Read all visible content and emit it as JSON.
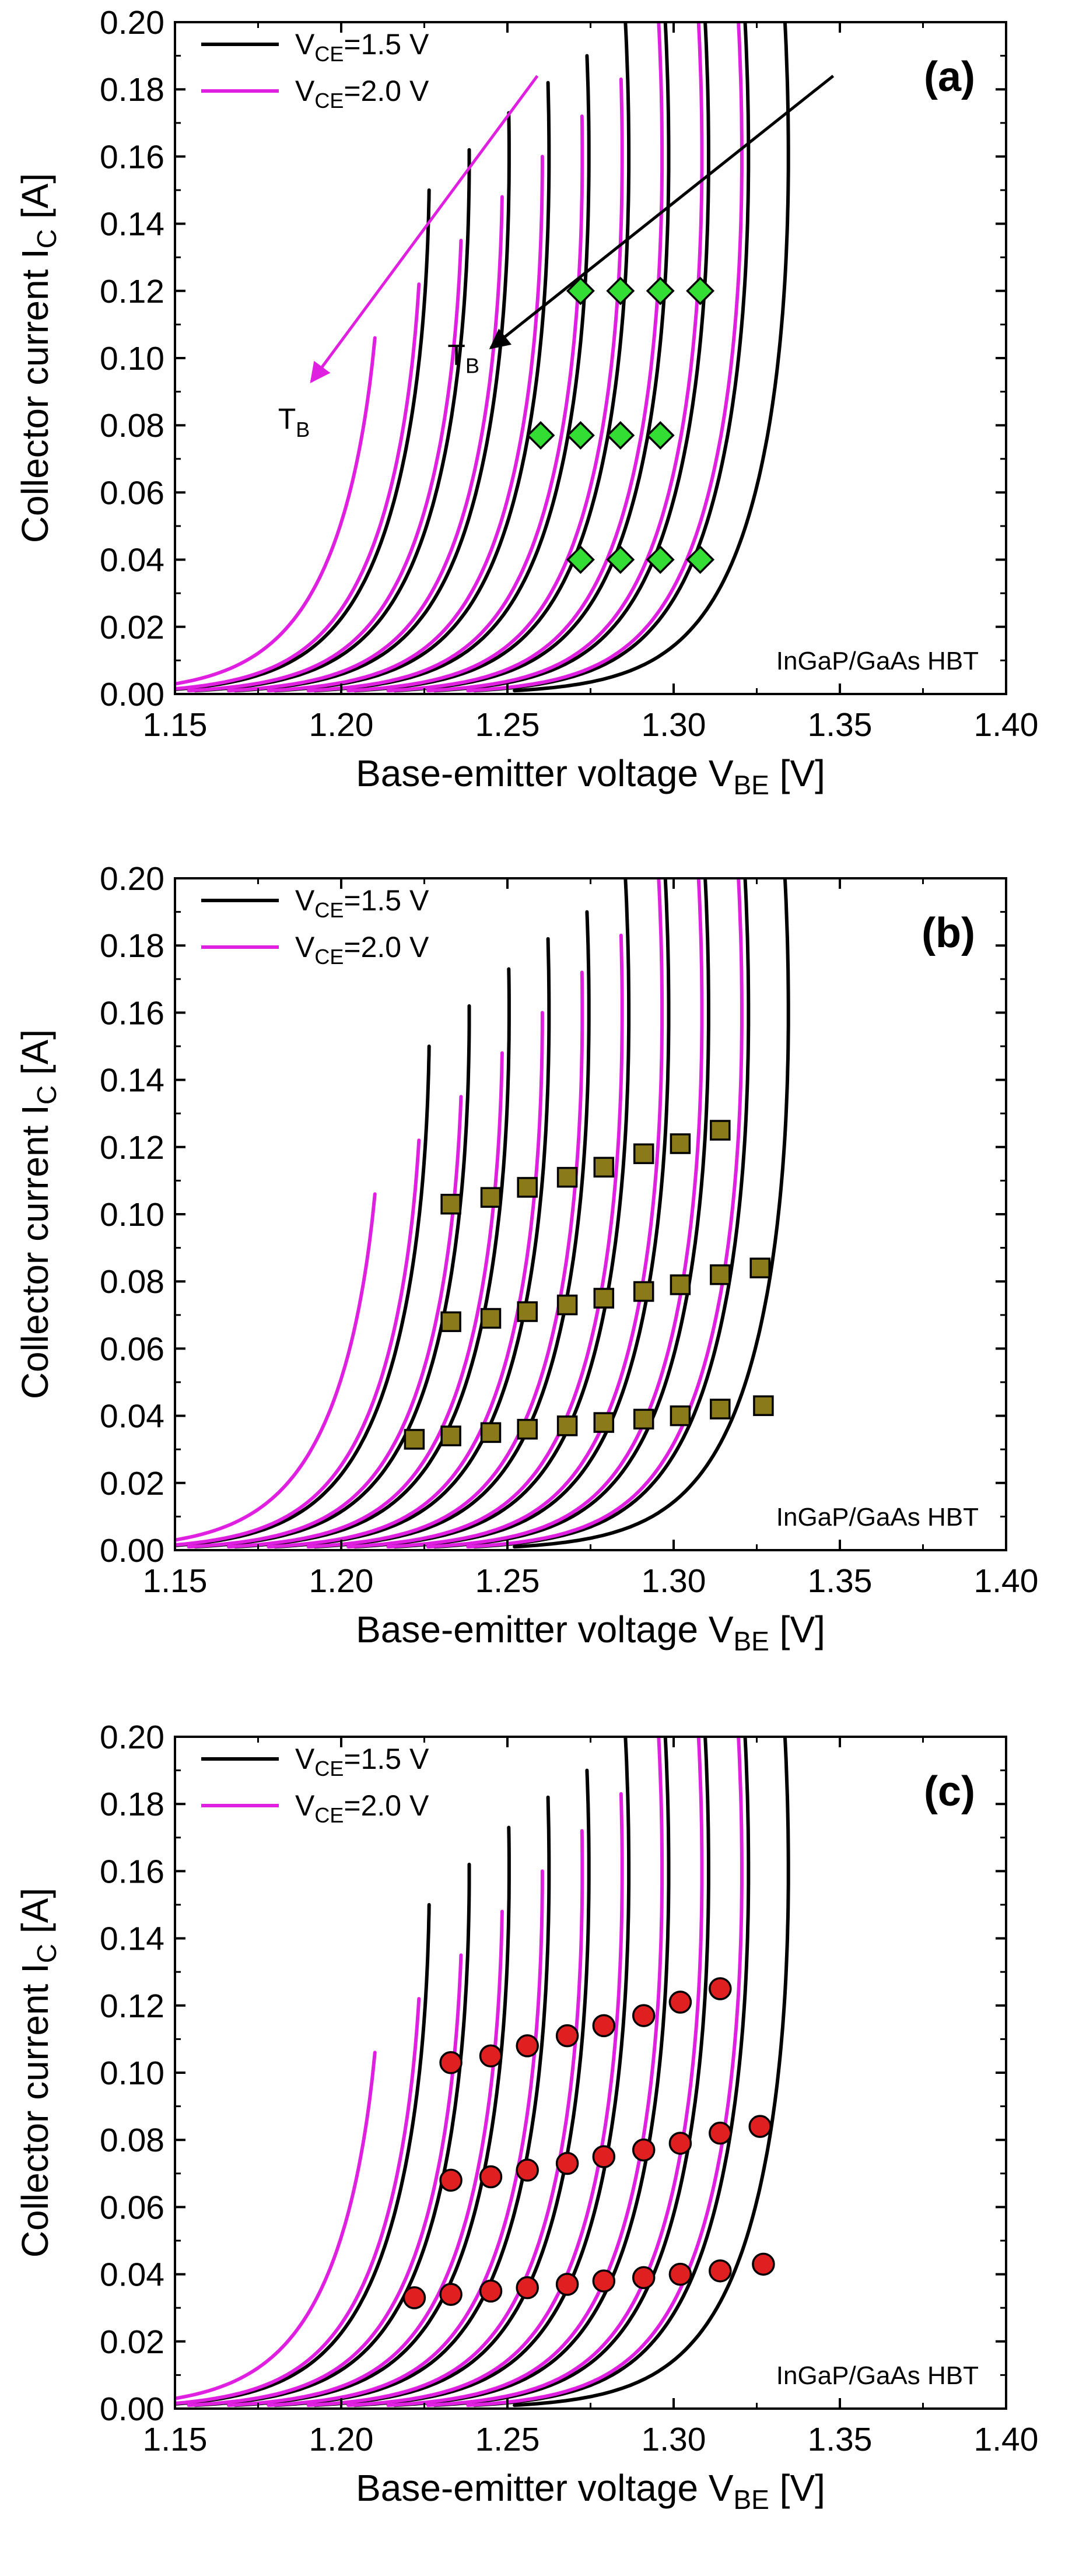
{
  "chart_data": [
    {
      "type": "line",
      "panel_label": "(a)",
      "marker": "diamond",
      "marker_color": "#33dd33",
      "xlabel_main": "Base-emitter voltage V",
      "xlabel_sub": "BE",
      "xlabel_tail": " [V]",
      "ylabel_main": "Collector current I",
      "ylabel_sub": "C",
      "ylabel_tail": " [A]",
      "xlim": [
        1.15,
        1.4
      ],
      "ylim": [
        0,
        0.2
      ],
      "xticks": [
        "1.15",
        "1.20",
        "1.25",
        "1.30",
        "1.35",
        "1.40"
      ],
      "yticks": [
        "0.00",
        "0.02",
        "0.04",
        "0.06",
        "0.08",
        "0.10",
        "0.12",
        "0.14",
        "0.16",
        "0.18",
        "0.20"
      ],
      "legend": [
        {
          "prefix": "V",
          "sub": "CE",
          "suffix": "=1.5 V",
          "color": "#000000"
        },
        {
          "prefix": "V",
          "sub": "CE",
          "suffix": "=2.0 V",
          "color": "#e020e0"
        }
      ],
      "legend_position": "top-left",
      "annotation": "InGaP/GaAs HBT",
      "arrow_label_main": "T",
      "arrow_label_sub": "B",
      "show_arrows": true,
      "series": [
        {
          "name": "VCE=1.5 V",
          "color": "#000000",
          "v0": [
            1.223,
            1.235,
            1.247,
            1.259,
            1.271,
            1.283,
            1.295,
            1.307,
            1.319,
            1.331
          ],
          "i_top": [
            0.15,
            0.162,
            0.173,
            0.182,
            0.19,
            0.2,
            0.2,
            0.2,
            0.2,
            0.2
          ]
        },
        {
          "name": "VCE=2.0 V",
          "color": "#e020e0",
          "v0": [
            1.209,
            1.221,
            1.233,
            1.245,
            1.257,
            1.269,
            1.281,
            1.293,
            1.305,
            1.317
          ],
          "i_top": [
            0.106,
            0.122,
            0.135,
            0.148,
            0.16,
            0.172,
            0.183,
            0.2,
            0.2,
            0.2
          ]
        }
      ],
      "points": [
        {
          "x": 1.272,
          "y": 0.12
        },
        {
          "x": 1.284,
          "y": 0.12
        },
        {
          "x": 1.296,
          "y": 0.12
        },
        {
          "x": 1.308,
          "y": 0.12
        },
        {
          "x": 1.26,
          "y": 0.077
        },
        {
          "x": 1.272,
          "y": 0.077
        },
        {
          "x": 1.284,
          "y": 0.077
        },
        {
          "x": 1.296,
          "y": 0.077
        },
        {
          "x": 1.272,
          "y": 0.04
        },
        {
          "x": 1.284,
          "y": 0.04
        },
        {
          "x": 1.296,
          "y": 0.04
        },
        {
          "x": 1.308,
          "y": 0.04
        }
      ]
    },
    {
      "type": "line",
      "panel_label": "(b)",
      "marker": "square",
      "marker_color": "#8a7a1a",
      "xlabel_main": "Base-emitter voltage V",
      "xlabel_sub": "BE",
      "xlabel_tail": " [V]",
      "ylabel_main": "Collector current I",
      "ylabel_sub": "C",
      "ylabel_tail": " [A]",
      "xlim": [
        1.15,
        1.4
      ],
      "ylim": [
        0,
        0.2
      ],
      "xticks": [
        "1.15",
        "1.20",
        "1.25",
        "1.30",
        "1.35",
        "1.40"
      ],
      "yticks": [
        "0.00",
        "0.02",
        "0.04",
        "0.06",
        "0.08",
        "0.10",
        "0.12",
        "0.14",
        "0.16",
        "0.18",
        "0.20"
      ],
      "legend": [
        {
          "prefix": "V",
          "sub": "CE",
          "suffix": "=1.5 V",
          "color": "#000000"
        },
        {
          "prefix": "V",
          "sub": "CE",
          "suffix": "=2.0 V",
          "color": "#e020e0"
        }
      ],
      "legend_position": "top-left",
      "annotation": "InGaP/GaAs HBT",
      "show_arrows": false,
      "series": [
        {
          "name": "VCE=1.5 V",
          "color": "#000000",
          "v0": [
            1.223,
            1.235,
            1.247,
            1.259,
            1.271,
            1.283,
            1.295,
            1.307,
            1.319,
            1.331
          ],
          "i_top": [
            0.15,
            0.162,
            0.173,
            0.182,
            0.19,
            0.2,
            0.2,
            0.2,
            0.2,
            0.2
          ]
        },
        {
          "name": "VCE=2.0 V",
          "color": "#e020e0",
          "v0": [
            1.209,
            1.221,
            1.233,
            1.245,
            1.257,
            1.269,
            1.281,
            1.293,
            1.305,
            1.317
          ],
          "i_top": [
            0.106,
            0.122,
            0.135,
            0.148,
            0.16,
            0.172,
            0.183,
            0.2,
            0.2,
            0.2
          ]
        }
      ],
      "points": [
        {
          "x": 1.222,
          "y": 0.033
        },
        {
          "x": 1.233,
          "y": 0.034
        },
        {
          "x": 1.245,
          "y": 0.035
        },
        {
          "x": 1.256,
          "y": 0.036
        },
        {
          "x": 1.268,
          "y": 0.037
        },
        {
          "x": 1.279,
          "y": 0.038
        },
        {
          "x": 1.291,
          "y": 0.039
        },
        {
          "x": 1.302,
          "y": 0.04
        },
        {
          "x": 1.314,
          "y": 0.042
        },
        {
          "x": 1.327,
          "y": 0.043
        },
        {
          "x": 1.233,
          "y": 0.068
        },
        {
          "x": 1.245,
          "y": 0.069
        },
        {
          "x": 1.256,
          "y": 0.071
        },
        {
          "x": 1.268,
          "y": 0.073
        },
        {
          "x": 1.279,
          "y": 0.075
        },
        {
          "x": 1.291,
          "y": 0.077
        },
        {
          "x": 1.302,
          "y": 0.079
        },
        {
          "x": 1.314,
          "y": 0.082
        },
        {
          "x": 1.326,
          "y": 0.084
        },
        {
          "x": 1.233,
          "y": 0.103
        },
        {
          "x": 1.245,
          "y": 0.105
        },
        {
          "x": 1.256,
          "y": 0.108
        },
        {
          "x": 1.268,
          "y": 0.111
        },
        {
          "x": 1.279,
          "y": 0.114
        },
        {
          "x": 1.291,
          "y": 0.118
        },
        {
          "x": 1.302,
          "y": 0.121
        },
        {
          "x": 1.314,
          "y": 0.125
        }
      ]
    },
    {
      "type": "line",
      "panel_label": "(c)",
      "marker": "circle",
      "marker_color": "#e02020",
      "xlabel_main": "Base-emitter voltage V",
      "xlabel_sub": "BE",
      "xlabel_tail": " [V]",
      "ylabel_main": "Collector current I",
      "ylabel_sub": "C",
      "ylabel_tail": " [A]",
      "xlim": [
        1.15,
        1.4
      ],
      "ylim": [
        0,
        0.2
      ],
      "xticks": [
        "1.15",
        "1.20",
        "1.25",
        "1.30",
        "1.35",
        "1.40"
      ],
      "yticks": [
        "0.00",
        "0.02",
        "0.04",
        "0.06",
        "0.08",
        "0.10",
        "0.12",
        "0.14",
        "0.16",
        "0.18",
        "0.20"
      ],
      "legend": [
        {
          "prefix": "V",
          "sub": "CE",
          "suffix": "=1.5 V",
          "color": "#000000"
        },
        {
          "prefix": "V",
          "sub": "CE",
          "suffix": "=2.0 V",
          "color": "#e020e0"
        }
      ],
      "legend_position": "top-left",
      "annotation": "InGaP/GaAs HBT",
      "show_arrows": false,
      "series": [
        {
          "name": "VCE=1.5 V",
          "color": "#000000",
          "v0": [
            1.223,
            1.235,
            1.247,
            1.259,
            1.271,
            1.283,
            1.295,
            1.307,
            1.319,
            1.331
          ],
          "i_top": [
            0.15,
            0.162,
            0.173,
            0.182,
            0.19,
            0.2,
            0.2,
            0.2,
            0.2,
            0.2
          ]
        },
        {
          "name": "VCE=2.0 V",
          "color": "#e020e0",
          "v0": [
            1.209,
            1.221,
            1.233,
            1.245,
            1.257,
            1.269,
            1.281,
            1.293,
            1.305,
            1.317
          ],
          "i_top": [
            0.106,
            0.122,
            0.135,
            0.148,
            0.16,
            0.172,
            0.183,
            0.2,
            0.2,
            0.2
          ]
        }
      ],
      "points": [
        {
          "x": 1.222,
          "y": 0.033
        },
        {
          "x": 1.233,
          "y": 0.034
        },
        {
          "x": 1.245,
          "y": 0.035
        },
        {
          "x": 1.256,
          "y": 0.036
        },
        {
          "x": 1.268,
          "y": 0.037
        },
        {
          "x": 1.279,
          "y": 0.038
        },
        {
          "x": 1.291,
          "y": 0.039
        },
        {
          "x": 1.302,
          "y": 0.04
        },
        {
          "x": 1.314,
          "y": 0.041
        },
        {
          "x": 1.327,
          "y": 0.043
        },
        {
          "x": 1.233,
          "y": 0.068
        },
        {
          "x": 1.245,
          "y": 0.069
        },
        {
          "x": 1.256,
          "y": 0.071
        },
        {
          "x": 1.268,
          "y": 0.073
        },
        {
          "x": 1.279,
          "y": 0.075
        },
        {
          "x": 1.291,
          "y": 0.077
        },
        {
          "x": 1.302,
          "y": 0.079
        },
        {
          "x": 1.314,
          "y": 0.082
        },
        {
          "x": 1.326,
          "y": 0.084
        },
        {
          "x": 1.233,
          "y": 0.103
        },
        {
          "x": 1.245,
          "y": 0.105
        },
        {
          "x": 1.256,
          "y": 0.108
        },
        {
          "x": 1.268,
          "y": 0.111
        },
        {
          "x": 1.279,
          "y": 0.114
        },
        {
          "x": 1.291,
          "y": 0.117
        },
        {
          "x": 1.302,
          "y": 0.121
        },
        {
          "x": 1.314,
          "y": 0.125
        }
      ]
    }
  ]
}
